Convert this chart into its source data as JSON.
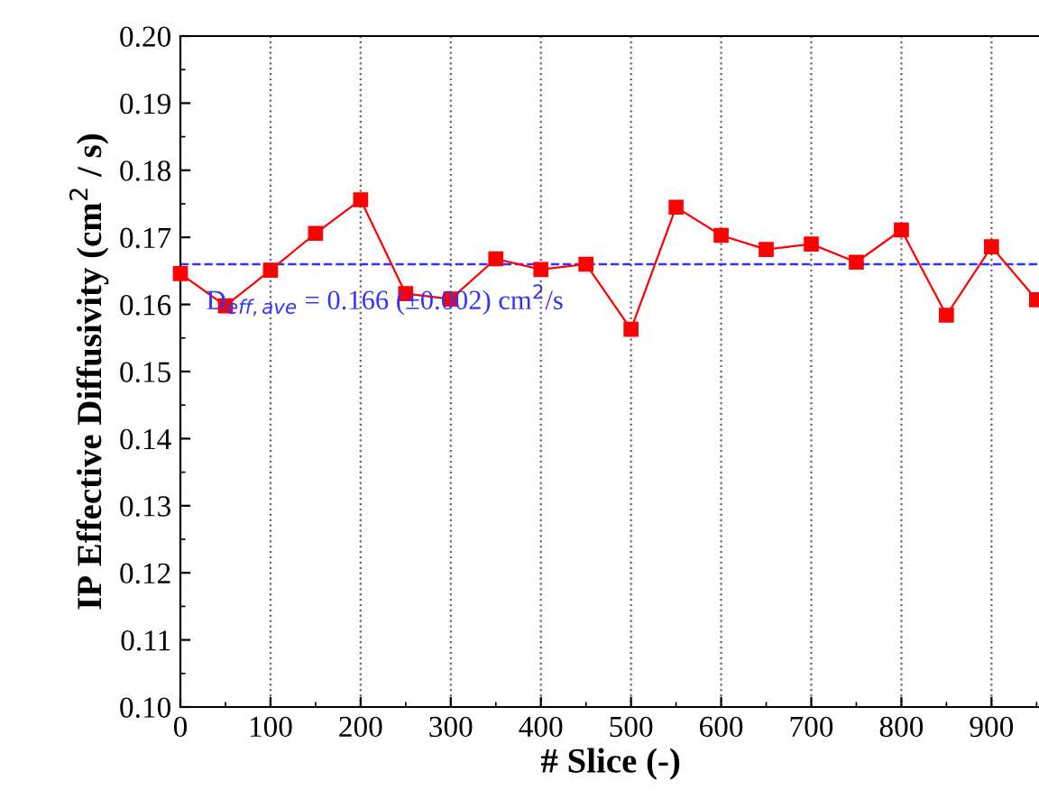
{
  "chart_data": {
    "type": "line",
    "xlabel": "# Slice (-)",
    "ylabel": "IP Effective Diffusivity (cm$^{2}$ / s)",
    "x": [
      0,
      50,
      100,
      150,
      200,
      250,
      300,
      350,
      400,
      450,
      500,
      550,
      600,
      650,
      700,
      750,
      800,
      850,
      900,
      950
    ],
    "series": [
      {
        "color": "#ff0000",
        "values": [
          0.1646,
          0.1598,
          0.1651,
          0.1706,
          0.1756,
          0.1616,
          0.1608,
          0.1668,
          0.1652,
          0.166,
          0.1563,
          0.1745,
          0.1703,
          0.1682,
          0.169,
          0.1663,
          0.1711,
          0.1584,
          0.1686,
          0.1607
        ]
      }
    ],
    "marker": "square",
    "line_style": "solid",
    "grid": "x",
    "xlim": [
      0,
      955
    ],
    "xticks": [
      0,
      100,
      200,
      300,
      400,
      500,
      600,
      700,
      800,
      900
    ],
    "ylim": [
      0.1,
      0.2
    ],
    "yticks": [
      {
        "value": 0.1,
        "label": "0.10"
      },
      {
        "value": 0.11,
        "label": "0.11"
      },
      {
        "value": 0.12,
        "label": "0.12"
      },
      {
        "value": 0.13,
        "label": "0.13"
      },
      {
        "value": 0.14,
        "label": "0.14"
      },
      {
        "value": 0.15,
        "label": "0.15"
      },
      {
        "value": 0.16,
        "label": "0.16"
      },
      {
        "value": 0.17,
        "label": "0.17"
      },
      {
        "value": 0.18,
        "label": "0.18"
      },
      {
        "value": 0.19,
        "label": "0.19"
      },
      {
        "value": 0.2,
        "label": "0.20"
      }
    ],
    "ref_lines": [
      {
        "axis": "y",
        "value": 0.166,
        "label": "D$_{eff,ave}$ = 0.166 (±0.002) cm$^{2}$/s",
        "color": "#3333ff",
        "line_style": "dashed"
      }
    ]
  }
}
